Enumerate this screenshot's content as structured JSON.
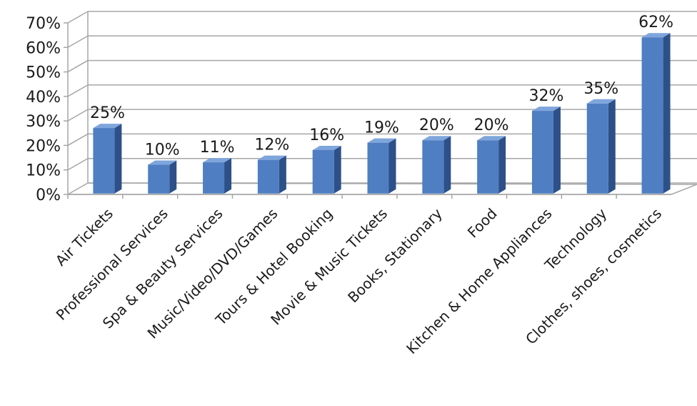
{
  "chart_data": {
    "type": "bar",
    "title": "",
    "xlabel": "",
    "ylabel": "",
    "ylim": [
      0,
      70
    ],
    "yticks": [
      "0%",
      "10%",
      "20%",
      "30%",
      "40%",
      "50%",
      "60%",
      "70%"
    ],
    "grid": true,
    "style": "3d-column",
    "colors": {
      "bar_front": "#4F7EC2",
      "bar_side": "#2D5089",
      "bar_top": "#7FA6DC",
      "grid": "#a6a6a6"
    },
    "categories": [
      "Air Tickets",
      "Professional Services",
      "Spa & Beauty Services",
      "Music/Video/DVD/Games",
      "Tours & Hotel Booking",
      "Movie & Music Tickets",
      "Books, Stationary",
      "Food",
      "Kitchen & Home Appliances",
      "Technology",
      "Clothes, shoes, cosmetics"
    ],
    "values": [
      25,
      10,
      11,
      12,
      16,
      19,
      20,
      20,
      32,
      35,
      62
    ],
    "data_labels": [
      "25%",
      "10%",
      "11%",
      "12%",
      "16%",
      "19%",
      "20%",
      "20%",
      "32%",
      "35%",
      "62%"
    ]
  }
}
